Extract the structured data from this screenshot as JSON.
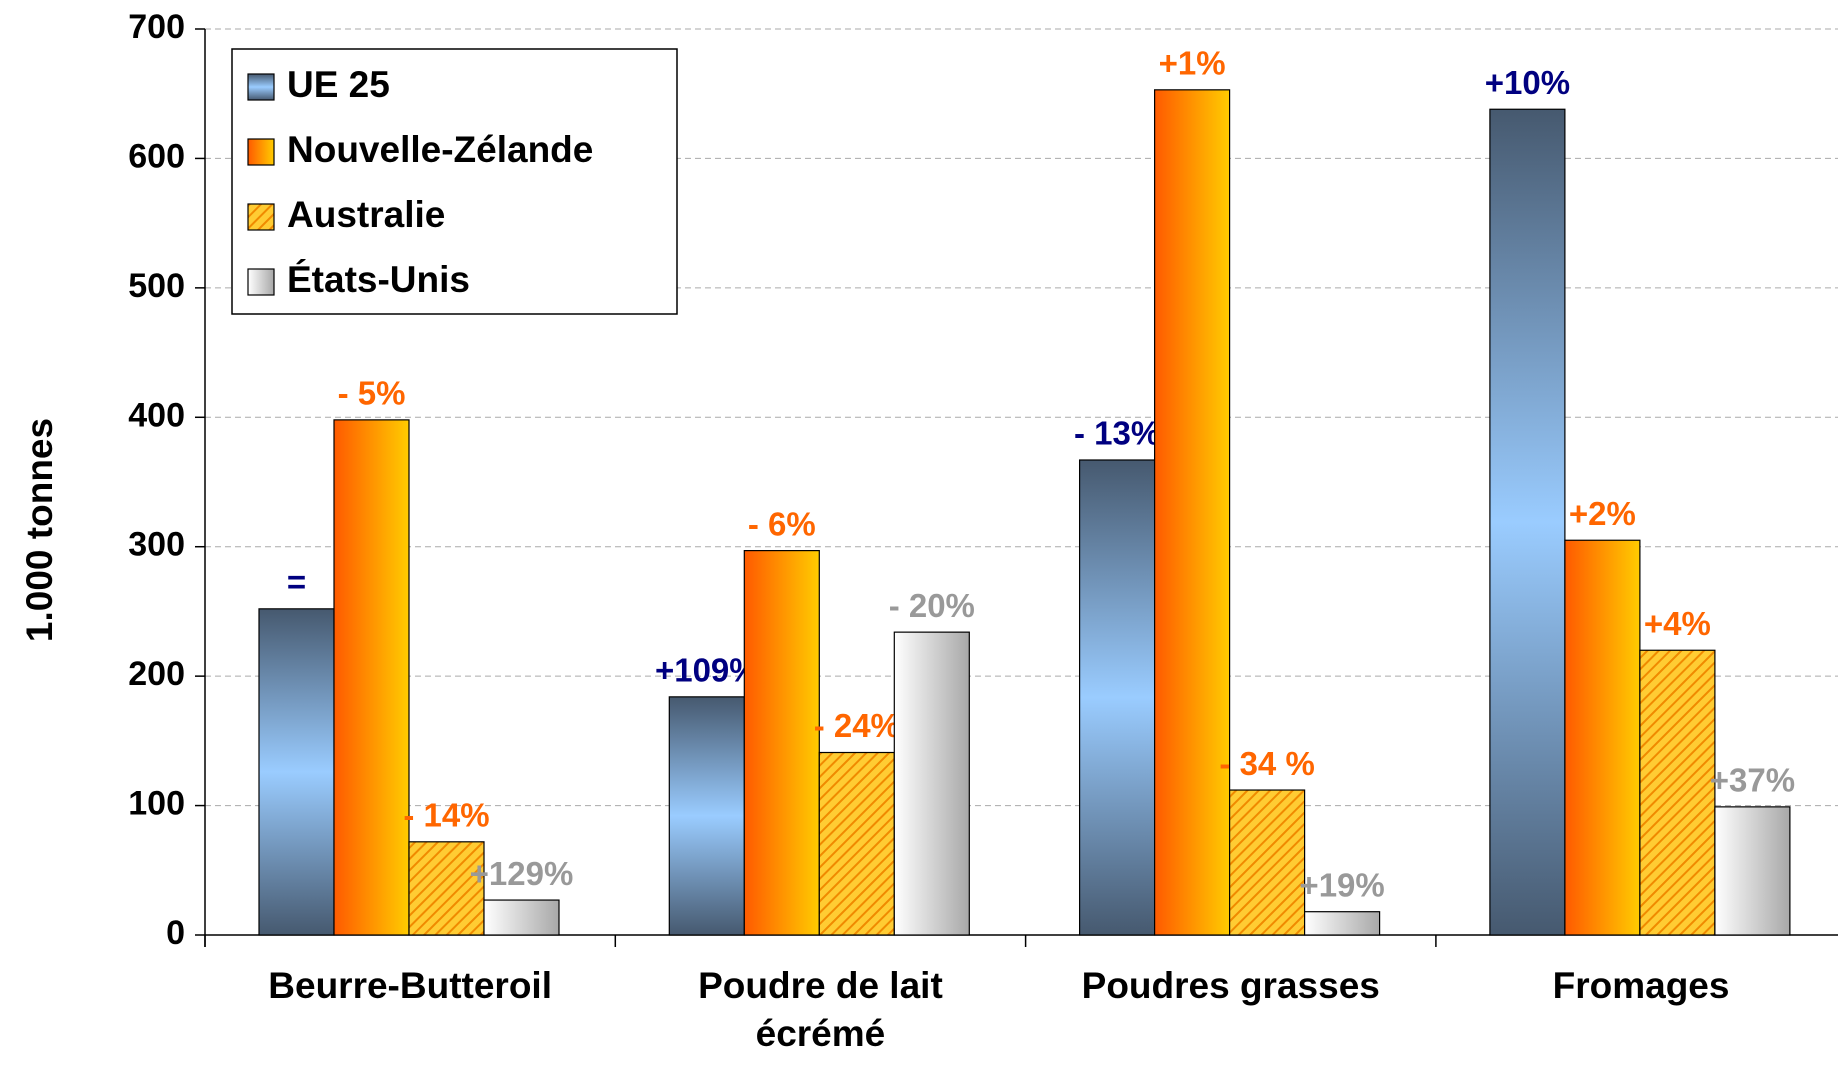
{
  "chart_data": {
    "type": "bar",
    "y_label": "1.000 tonnes",
    "categories": [
      "Beurre-Butteroil",
      "Poudre de lait écrémé",
      "Poudres grasses",
      "Fromages"
    ],
    "series": [
      {
        "name": "UE 25",
        "colors": [
          "#46596f",
          "#9accff"
        ],
        "fill_style": "vertical-mirror",
        "label_color": "#000080",
        "values": [
          252,
          184,
          367,
          638
        ],
        "annotations": [
          "=",
          "+109%",
          "- 13%",
          "+10%"
        ]
      },
      {
        "name": "Nouvelle-Zélande",
        "colors": [
          "#ff5a00",
          "#ffcc00"
        ],
        "fill_style": "horizontal",
        "label_color": "#ff6600",
        "values": [
          398,
          297,
          653,
          305
        ],
        "annotations": [
          "- 5%",
          "- 6%",
          "+1%",
          "+2%"
        ]
      },
      {
        "name": "Australie",
        "colors": [
          "#ffcc33",
          "#f08a00"
        ],
        "fill_style": "hatch",
        "label_color": "#ff6600",
        "values": [
          72,
          141,
          112,
          220
        ],
        "annotations": [
          "- 14%",
          "- 24%",
          "- 34 %",
          "+4%"
        ]
      },
      {
        "name": "États-Unis",
        "colors": [
          "#ffffff",
          "#a8a8a8"
        ],
        "fill_style": "horizontal",
        "label_color": "#999999",
        "values": [
          27,
          234,
          18,
          99
        ],
        "annotations": [
          "+129%",
          "- 20%",
          "+19%",
          "+37%"
        ]
      }
    ],
    "ylim": [
      0,
      700
    ],
    "yticks": [
      0,
      100,
      200,
      300,
      400,
      500,
      600,
      700
    ],
    "grid": true,
    "legend": "top-left"
  }
}
